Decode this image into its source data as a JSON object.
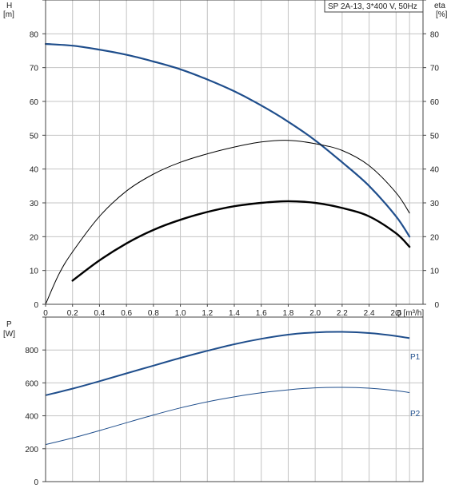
{
  "colors": {
    "head_curve": "#1f4e8c",
    "efficiency_curve": "#000000",
    "power_curve": "#1f4e8c",
    "grid": "#c4c4c4"
  },
  "chart_data": [
    {
      "type": "line",
      "title": "SP 2A-13, 3*400 V, 50Hz",
      "xlabel": "Q [m³/h]",
      "ylabel_left": "H",
      "ylabel_left_unit": "[m]",
      "ylabel_right": "eta",
      "ylabel_right_unit": "[%]",
      "xlim": [
        0,
        2.8
      ],
      "ylim": [
        0,
        90
      ],
      "x_ticks": [
        "0",
        "0.2",
        "0.4",
        "0.6",
        "0.8",
        "1.0",
        "1.2",
        "1.4",
        "1.6",
        "1.8",
        "2.0",
        "2.2",
        "2.4",
        "2.6"
      ],
      "y_ticks": [
        "0",
        "10",
        "20",
        "30",
        "40",
        "50",
        "60",
        "70",
        "80"
      ],
      "grid": true,
      "series": [
        {
          "role": "head",
          "x": [
            0,
            0.2,
            0.4,
            0.6,
            0.8,
            1.0,
            1.2,
            1.4,
            1.6,
            1.8,
            2.0,
            2.2,
            2.4,
            2.6,
            2.7
          ],
          "y": [
            77,
            76.5,
            75.3,
            73.8,
            71.8,
            69.5,
            66.5,
            63,
            58.8,
            54,
            48.5,
            42,
            35,
            26,
            20
          ]
        },
        {
          "role": "efficiency-thin",
          "x": [
            0,
            0.1,
            0.2,
            0.4,
            0.6,
            0.8,
            1.0,
            1.2,
            1.4,
            1.6,
            1.8,
            2.0,
            2.2,
            2.4,
            2.6,
            2.7
          ],
          "y": [
            0,
            9,
            15.5,
            26,
            33.5,
            38.5,
            42,
            44.5,
            46.5,
            48,
            48.5,
            47.5,
            45.5,
            41,
            33,
            27
          ]
        },
        {
          "role": "efficiency-thick",
          "x": [
            0.2,
            0.4,
            0.6,
            0.8,
            1.0,
            1.2,
            1.4,
            1.6,
            1.8,
            2.0,
            2.2,
            2.4,
            2.6,
            2.7
          ],
          "y": [
            7,
            13,
            18,
            22,
            25,
            27.3,
            29,
            30,
            30.5,
            30,
            28.5,
            26,
            21,
            17
          ]
        }
      ]
    },
    {
      "type": "line",
      "ylabel": "P",
      "ylabel_unit": "[W]",
      "xlim": [
        0,
        2.8
      ],
      "ylim": [
        0,
        1000
      ],
      "y_ticks": [
        "0",
        "200",
        "400",
        "600",
        "800"
      ],
      "grid": true,
      "series": [
        {
          "name": "P1",
          "x": [
            0,
            0.2,
            0.4,
            0.6,
            0.8,
            1.0,
            1.2,
            1.4,
            1.6,
            1.8,
            2.0,
            2.2,
            2.4,
            2.6,
            2.7
          ],
          "y": [
            525,
            565,
            610,
            658,
            705,
            752,
            795,
            835,
            868,
            893,
            907,
            910,
            903,
            885,
            872
          ]
        },
        {
          "name": "P2",
          "x": [
            0,
            0.2,
            0.4,
            0.6,
            0.8,
            1.0,
            1.2,
            1.4,
            1.6,
            1.8,
            2.0,
            2.2,
            2.4,
            2.6,
            2.7
          ],
          "y": [
            225,
            265,
            310,
            358,
            405,
            448,
            485,
            515,
            540,
            558,
            570,
            573,
            568,
            553,
            541
          ]
        }
      ]
    }
  ]
}
